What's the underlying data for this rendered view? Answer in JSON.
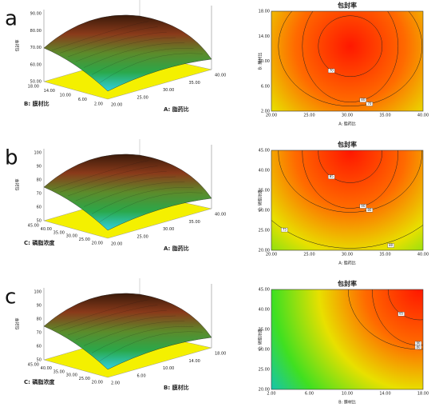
{
  "panels": [
    {
      "letter": "a",
      "surface": {
        "z_label": "包封率",
        "x_label": "A: 脂药比",
        "y_label": "B: 膜材比",
        "z_ticks": [
          "50.00",
          "60.00",
          "70.00",
          "80.00",
          "90.00"
        ],
        "x_ticks": [
          "20.00",
          "25.00",
          "30.00",
          "35.00",
          "40.00"
        ],
        "y_ticks": [
          "2.00",
          "6.00",
          "10.00",
          "14.00",
          "18.00"
        ]
      },
      "contour": {
        "title": "包封率",
        "x_label": "A: 脂药比",
        "y_label": "B: 膜材比",
        "x_ticks": [
          "20.00",
          "25.00",
          "30.00",
          "35.00",
          "40.00"
        ],
        "y_ticks": [
          "2.00",
          "6.00",
          "10.00",
          "14.00",
          "18.00"
        ],
        "contour_labels": [
          "80",
          "70",
          "70"
        ]
      }
    },
    {
      "letter": "b",
      "surface": {
        "z_label": "包封率",
        "x_label": "A: 脂药比",
        "y_label": "C: 磷脂浓度",
        "z_ticks": [
          "50",
          "60",
          "70",
          "80",
          "90",
          "100"
        ],
        "x_ticks": [
          "20.00",
          "25.00",
          "30.00",
          "35.00",
          "40.00"
        ],
        "y_ticks": [
          "20.00",
          "25.00",
          "30.00",
          "35.00",
          "40.00",
          "45.00"
        ]
      },
      "contour": {
        "title": "包封率",
        "x_label": "A: 脂药比",
        "y_label": "C: 磷脂浓度",
        "x_ticks": [
          "20.00",
          "25.00",
          "30.00",
          "35.00",
          "40.00"
        ],
        "y_ticks": [
          "20.00",
          "25.00",
          "30.00",
          "35.00",
          "40.00",
          "45.00"
        ],
        "contour_labels": [
          "90",
          "85",
          "80",
          "75",
          "80"
        ]
      }
    },
    {
      "letter": "c",
      "surface": {
        "z_label": "包封率",
        "x_label": "B: 膜材比",
        "y_label": "C: 磷脂浓度",
        "z_ticks": [
          "50",
          "60",
          "70",
          "80",
          "90",
          "100"
        ],
        "x_ticks": [
          "2.00",
          "6.00",
          "10.00",
          "14.00",
          "18.00"
        ],
        "y_ticks": [
          "20.00",
          "25.00",
          "30.00",
          "35.00",
          "40.00",
          "45.00"
        ]
      },
      "contour": {
        "title": "包封率",
        "x_label": "B: 膜材比",
        "y_label": "C: 磷脂浓度",
        "x_ticks": [
          "2.00",
          "6.00",
          "10.00",
          "14.00",
          "18.00"
        ],
        "y_ticks": [
          "20.00",
          "25.00",
          "30.00",
          "35.00",
          "40.00",
          "45.00"
        ],
        "contour_labels": [
          "90",
          "85",
          "80"
        ]
      }
    }
  ]
}
